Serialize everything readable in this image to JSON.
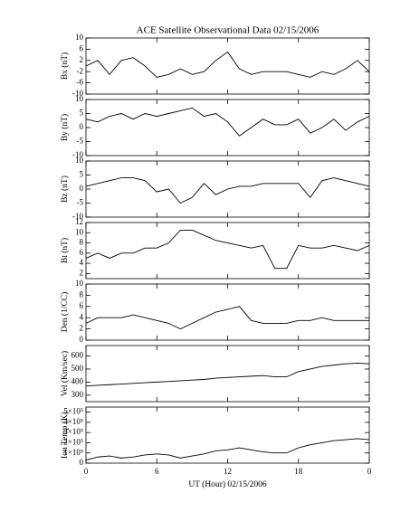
{
  "chart_data": [
    {
      "type": "line",
      "title": "ACE Satellite Observational Data   02/15/2006",
      "ylabel": "Bx (nT)",
      "x": [
        0,
        1,
        2,
        3,
        4,
        5,
        6,
        7,
        8,
        9,
        10,
        11,
        12,
        13,
        14,
        15,
        16,
        17,
        18,
        19,
        20,
        21,
        22,
        23,
        24
      ],
      "xlim": [
        0,
        24
      ],
      "xticks": [
        0,
        6,
        12,
        18,
        {
          "value": 24,
          "label": "0"
        }
      ],
      "ylim": [
        -10,
        10
      ],
      "yticks": [
        -10,
        -6,
        -2,
        2,
        6,
        10
      ],
      "series": [
        {
          "color": "#000000",
          "values": [
            0,
            2,
            -3,
            2,
            3,
            0,
            -4,
            -3,
            -1,
            -3,
            -2,
            2,
            5,
            -1,
            -3,
            -2,
            -2,
            -2,
            -3,
            -4,
            -2,
            -3,
            -1,
            2,
            -2
          ]
        }
      ]
    },
    {
      "type": "line",
      "ylabel": "By (nT)",
      "x": [
        0,
        1,
        2,
        3,
        4,
        5,
        6,
        7,
        8,
        9,
        10,
        11,
        12,
        13,
        14,
        15,
        16,
        17,
        18,
        19,
        20,
        21,
        22,
        23,
        24
      ],
      "xlim": [
        0,
        24
      ],
      "xticks": [
        0,
        6,
        12,
        18,
        24
      ],
      "ylim": [
        -10,
        10
      ],
      "yticks": [
        -10,
        -5,
        0,
        5,
        10
      ],
      "series": [
        {
          "color": "#000000",
          "values": [
            3,
            2,
            4,
            5,
            3,
            5,
            4,
            5,
            6,
            7,
            4,
            5,
            2,
            -3,
            0,
            3,
            1,
            1,
            3,
            -2,
            0,
            3,
            -1,
            2,
            4
          ]
        }
      ]
    },
    {
      "type": "line",
      "ylabel": "Bz (nT)",
      "x": [
        0,
        1,
        2,
        3,
        4,
        5,
        6,
        7,
        8,
        9,
        10,
        11,
        12,
        13,
        14,
        15,
        16,
        17,
        18,
        19,
        20,
        21,
        22,
        23,
        24
      ],
      "xlim": [
        0,
        24
      ],
      "xticks": [
        0,
        6,
        12,
        18,
        24
      ],
      "ylim": [
        -10,
        10
      ],
      "yticks": [
        -10,
        -5,
        0,
        5,
        10
      ],
      "series": [
        {
          "color": "#000000",
          "values": [
            1,
            2,
            3,
            4,
            4,
            3,
            -1,
            0,
            -5,
            -3,
            2,
            -2,
            0,
            1,
            1,
            2,
            2,
            2,
            2,
            -3,
            3,
            4,
            3,
            2,
            1
          ]
        }
      ]
    },
    {
      "type": "line",
      "ylabel": "Bt (nT)",
      "x": [
        0,
        1,
        2,
        3,
        4,
        5,
        6,
        7,
        8,
        9,
        10,
        11,
        12,
        13,
        14,
        15,
        16,
        17,
        18,
        19,
        20,
        21,
        22,
        23,
        24
      ],
      "xlim": [
        0,
        24
      ],
      "xticks": [
        0,
        6,
        12,
        18,
        24
      ],
      "ylim": [
        1,
        12
      ],
      "yticks": [
        2,
        4,
        6,
        8,
        10,
        12
      ],
      "series": [
        {
          "color": "#000000",
          "values": [
            5,
            6,
            5,
            6,
            6,
            7,
            7,
            8,
            10.5,
            10.5,
            9.5,
            8.5,
            8,
            7.5,
            7,
            7.5,
            3,
            3,
            7.5,
            7,
            7,
            7.5,
            7,
            6.5,
            7.5
          ]
        }
      ]
    },
    {
      "type": "line",
      "ylabel": "Den (1/CC)",
      "x": [
        0,
        1,
        2,
        3,
        4,
        5,
        6,
        7,
        8,
        9,
        10,
        11,
        12,
        13,
        14,
        15,
        16,
        17,
        18,
        19,
        20,
        21,
        22,
        23,
        24
      ],
      "xlim": [
        0,
        24
      ],
      "xticks": [
        0,
        6,
        12,
        18,
        24
      ],
      "ylim": [
        0,
        10
      ],
      "yticks": [
        0,
        2,
        4,
        6,
        8,
        10
      ],
      "series": [
        {
          "color": "#000000",
          "values": [
            3,
            4,
            4,
            4,
            4.5,
            4,
            3.5,
            3,
            2,
            3,
            4,
            5,
            5.5,
            6,
            3.5,
            3,
            3,
            3,
            3.5,
            3.5,
            4,
            3.5,
            3.5,
            3.5,
            3.5
          ]
        }
      ]
    },
    {
      "type": "line",
      "ylabel": "Vel (Km/sec)",
      "x": [
        0,
        1,
        2,
        3,
        4,
        5,
        6,
        7,
        8,
        9,
        10,
        11,
        12,
        13,
        14,
        15,
        16,
        17,
        18,
        19,
        20,
        21,
        22,
        23,
        24
      ],
      "xlim": [
        0,
        24
      ],
      "xticks": [
        0,
        6,
        12,
        18,
        24
      ],
      "ylim": [
        250,
        680
      ],
      "yticks": [
        300,
        400,
        500,
        600
      ],
      "series": [
        {
          "color": "#000000",
          "values": [
            370,
            375,
            380,
            385,
            390,
            395,
            400,
            405,
            410,
            415,
            420,
            430,
            435,
            440,
            445,
            450,
            440,
            440,
            480,
            500,
            520,
            530,
            540,
            545,
            540
          ]
        }
      ]
    },
    {
      "type": "line",
      "ylabel": "Ion Temp (K)",
      "xlabel": "UT (Hour)   02/15/2006",
      "x": [
        0,
        1,
        2,
        3,
        4,
        5,
        6,
        7,
        8,
        9,
        10,
        11,
        12,
        13,
        14,
        15,
        16,
        17,
        18,
        19,
        20,
        21,
        22,
        23,
        24
      ],
      "xlim": [
        0,
        24
      ],
      "xticks": [
        0,
        6,
        12,
        18,
        {
          "value": 24,
          "label": "0"
        }
      ],
      "ylim": [
        0,
        550000
      ],
      "yticks": [
        0,
        {
          "value": 100000,
          "label": "1×10⁵"
        },
        {
          "value": 200000,
          "label": "2×10⁵"
        },
        {
          "value": 300000,
          "label": "3×10⁵"
        },
        {
          "value": 400000,
          "label": "4×10⁵"
        },
        {
          "value": 500000,
          "label": "5×10⁵"
        }
      ],
      "series": [
        {
          "color": "#000000",
          "values": [
            30000,
            60000,
            70000,
            50000,
            60000,
            80000,
            90000,
            80000,
            50000,
            70000,
            90000,
            120000,
            130000,
            150000,
            130000,
            110000,
            100000,
            100000,
            150000,
            180000,
            200000,
            220000,
            230000,
            240000,
            230000
          ]
        }
      ]
    }
  ]
}
